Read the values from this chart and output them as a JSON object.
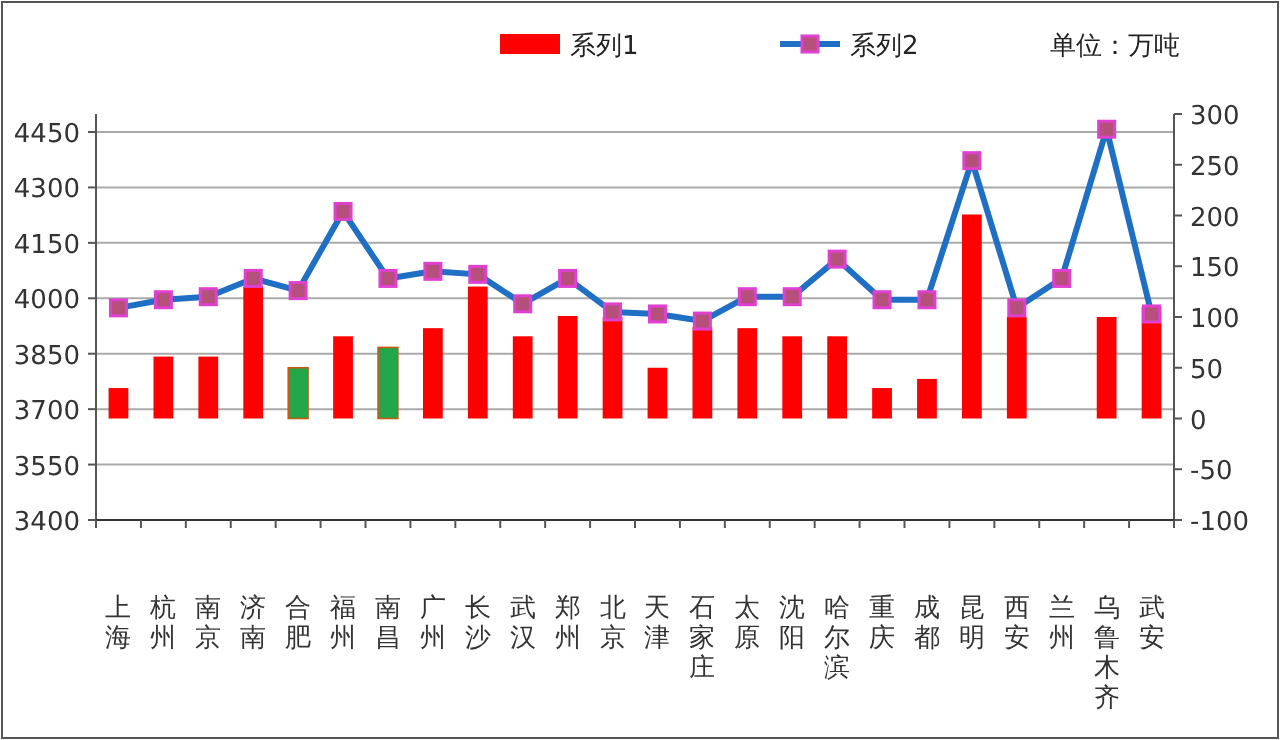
{
  "chart_data": {
    "type": "bar",
    "categories": [
      "上海",
      "杭州",
      "南京",
      "济南",
      "合肥",
      "福州",
      "南昌",
      "广州",
      "长沙",
      "武汉",
      "郑州",
      "北京",
      "天津",
      "石家庄",
      "太原",
      "沈阳",
      "哈尔滨",
      "重庆",
      "成都",
      "昆明",
      "西安",
      "兰州",
      "乌鲁木齐",
      "武安"
    ],
    "series": [
      {
        "name": "系列1",
        "axis": "y2",
        "color": "#ff0000",
        "colors": [
          "#ff0000",
          "#ff0000",
          "#ff0000",
          "#ff0000",
          "#22a84a",
          "#ff0000",
          "#22a84a",
          "#ff0000",
          "#ff0000",
          "#ff0000",
          "#ff0000",
          "#ff0000",
          "#ff0000",
          "#ff0000",
          "#ff0000",
          "#ff0000",
          "#ff0000",
          "#ff0000",
          "#ff0000",
          "#ff0000",
          "#ff0000",
          "#ff0000",
          "#ff0000",
          "#ff0000"
        ],
        "values": [
          30,
          61,
          61,
          130,
          50,
          81,
          70,
          89,
          130,
          81,
          101,
          100,
          50,
          90,
          89,
          81,
          81,
          30,
          39,
          201,
          100,
          null,
          100,
          110
        ]
      },
      {
        "name": "系列2",
        "type": "line",
        "axis": "y2",
        "color": "#1f6fc4",
        "marker": "square",
        "values": [
          109,
          117,
          120,
          138,
          126,
          204,
          138,
          145,
          142,
          113,
          138,
          105,
          103,
          96,
          120,
          120,
          157,
          117,
          117,
          254,
          109,
          138,
          285,
          103
        ]
      }
    ],
    "ylim": [
      3400,
      4450
    ],
    "yticks": [
      3400,
      3550,
      3700,
      3850,
      4000,
      4150,
      4300,
      4450
    ],
    "y2lim": [
      -100,
      300
    ],
    "y2ticks": [
      -100,
      -50,
      0,
      50,
      100,
      150,
      200,
      250,
      300
    ],
    "grid": "y",
    "legend": "top",
    "annotations": [
      "单位：万吨"
    ]
  }
}
